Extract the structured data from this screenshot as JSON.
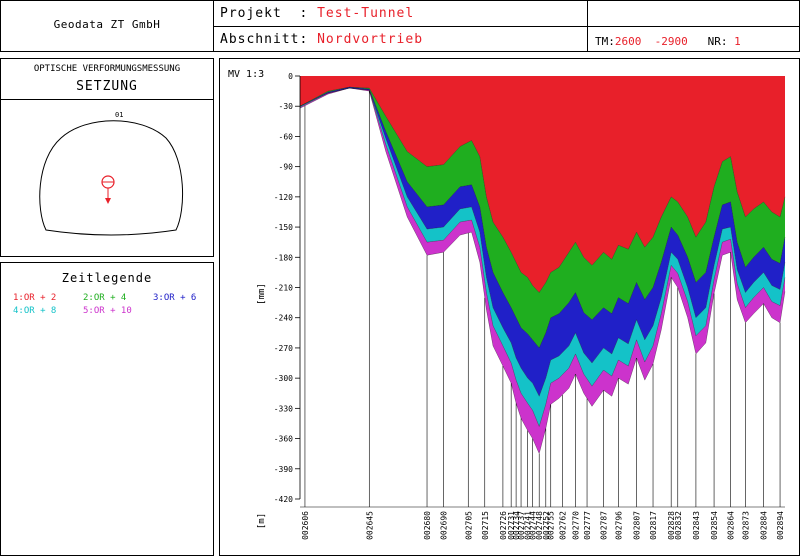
{
  "header": {
    "company": "Geodata ZT GmbH",
    "projekt_label": "Projekt",
    "projekt_value": "Test-Tunnel",
    "abschnitt_label": "Abschnitt:",
    "abschnitt_value": "Nordvortrieb",
    "tm_label": "TM:",
    "tm_from": "2600",
    "tm_to": "-2900",
    "nr_label": "NR:",
    "nr_value": "1"
  },
  "left_panel": {
    "title_small": "OPTISCHE VERFORMUNGSMESSUNG",
    "title_big": "SETZUNG",
    "point_label": "01"
  },
  "legend": {
    "title": "Zeitlegende",
    "items": [
      {
        "text": "1:OR +  2",
        "color": "#e8202a"
      },
      {
        "text": "2:OR +  4",
        "color": "#1fae1f"
      },
      {
        "text": "3:OR +  6",
        "color": "#2020c8"
      },
      {
        "text": "4:OR +  8",
        "color": "#14c2c8"
      },
      {
        "text": "5:OR + 10",
        "color": "#cc33cc"
      }
    ]
  },
  "chart_data": {
    "type": "area",
    "scale_label": "MV 1:3",
    "ylabel": "[mm]",
    "xlabel": "[m]",
    "ylim": [
      -420,
      0
    ],
    "yticks": [
      0,
      -30,
      -60,
      -90,
      -120,
      -150,
      -180,
      -210,
      -240,
      -270,
      -300,
      -330,
      -360,
      -390,
      -420
    ],
    "xlim": [
      2603,
      2897
    ],
    "x_stations": [
      "002606",
      "002645",
      "002680",
      "002690",
      "002705",
      "002715",
      "002726",
      "002731",
      "002734",
      "002737",
      "002741",
      "002744",
      "002748",
      "002752",
      "002755",
      "002762",
      "002770",
      "002777",
      "002787",
      "002796",
      "002807",
      "002817",
      "002828",
      "002832",
      "002843",
      "002854",
      "002864",
      "002873",
      "002884",
      "002894"
    ],
    "x": [
      2603,
      2620,
      2633,
      2645,
      2655,
      2668,
      2680,
      2690,
      2700,
      2707,
      2712,
      2716,
      2720,
      2726,
      2731,
      2734,
      2737,
      2741,
      2744,
      2748,
      2752,
      2755,
      2760,
      2766,
      2770,
      2775,
      2780,
      2787,
      2792,
      2796,
      2802,
      2807,
      2812,
      2817,
      2822,
      2828,
      2832,
      2838,
      2843,
      2849,
      2854,
      2859,
      2864,
      2868,
      2873,
      2878,
      2884,
      2889,
      2894,
      2897
    ],
    "series": [
      {
        "name": "1:OR +  2",
        "color": "#e8202a",
        "values": [
          -30,
          -15,
          -11,
          -12,
          -40,
          -75,
          -90,
          -88,
          -70,
          -64,
          -80,
          -120,
          -145,
          -160,
          -175,
          -185,
          -195,
          -200,
          -208,
          -215,
          -205,
          -195,
          -190,
          -175,
          -165,
          -180,
          -188,
          -175,
          -182,
          -168,
          -172,
          -155,
          -170,
          -160,
          -140,
          -120,
          -125,
          -140,
          -160,
          -145,
          -110,
          -85,
          -80,
          -115,
          -140,
          -132,
          -125,
          -135,
          -140,
          -120
        ]
      },
      {
        "name": "2:OR +  4",
        "color": "#1fae1f",
        "values": [
          -30,
          -16,
          -11,
          -13,
          -55,
          -105,
          -130,
          -128,
          -110,
          -108,
          -130,
          -170,
          -195,
          -215,
          -230,
          -240,
          -250,
          -256,
          -262,
          -270,
          -255,
          -240,
          -236,
          -225,
          -215,
          -235,
          -242,
          -230,
          -236,
          -220,
          -226,
          -205,
          -222,
          -210,
          -185,
          -150,
          -158,
          -180,
          -205,
          -195,
          -160,
          -128,
          -125,
          -165,
          -190,
          -180,
          -170,
          -182,
          -186,
          -160
        ]
      },
      {
        "name": "3:OR +  6",
        "color": "#2020c8",
        "values": [
          -30,
          -17,
          -12,
          -14,
          -62,
          -120,
          -152,
          -150,
          -132,
          -130,
          -155,
          -200,
          -230,
          -250,
          -265,
          -280,
          -290,
          -300,
          -305,
          -318,
          -300,
          -282,
          -278,
          -268,
          -255,
          -275,
          -285,
          -270,
          -276,
          -260,
          -266,
          -242,
          -262,
          -248,
          -220,
          -175,
          -182,
          -210,
          -240,
          -230,
          -188,
          -152,
          -150,
          -192,
          -215,
          -205,
          -195,
          -208,
          -212,
          -185
        ]
      },
      {
        "name": "4:OR +  8",
        "color": "#14c2c8",
        "values": [
          -31,
          -17,
          -12,
          -14,
          -68,
          -130,
          -165,
          -163,
          -145,
          -143,
          -170,
          -215,
          -248,
          -268,
          -285,
          -302,
          -315,
          -325,
          -332,
          -348,
          -326,
          -305,
          -300,
          -290,
          -276,
          -296,
          -308,
          -292,
          -298,
          -282,
          -288,
          -262,
          -284,
          -268,
          -236,
          -188,
          -196,
          -224,
          -258,
          -248,
          -202,
          -165,
          -162,
          -206,
          -230,
          -220,
          -210,
          -224,
          -228,
          -200
        ]
      },
      {
        "name": "5:OR + 10",
        "color": "#cc33cc",
        "values": [
          -32,
          -18,
          -12,
          -15,
          -75,
          -140,
          -178,
          -175,
          -158,
          -155,
          -185,
          -232,
          -268,
          -288,
          -305,
          -325,
          -340,
          -352,
          -360,
          -375,
          -350,
          -326,
          -320,
          -310,
          -296,
          -315,
          -328,
          -312,
          -318,
          -300,
          -306,
          -280,
          -302,
          -286,
          -252,
          -200,
          -210,
          -240,
          -276,
          -265,
          -216,
          -178,
          -175,
          -222,
          -245,
          -236,
          -226,
          -240,
          -245,
          -214
        ]
      }
    ]
  }
}
